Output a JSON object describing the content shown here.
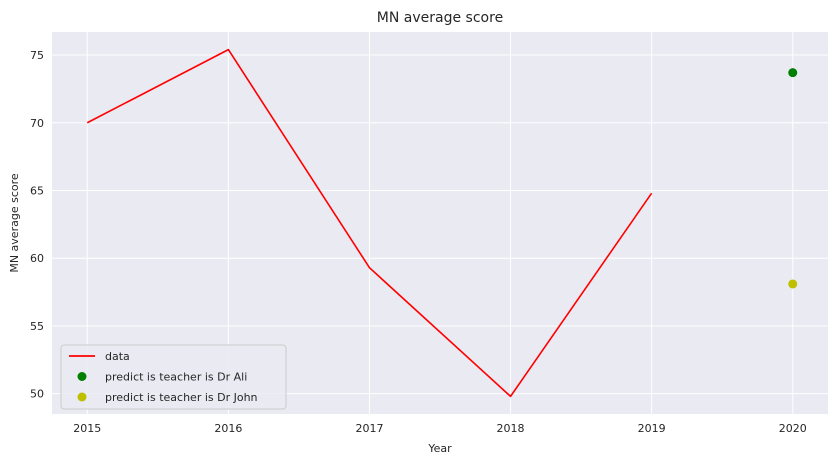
{
  "chart_data": {
    "type": "line",
    "title": "MN average score",
    "xlabel": "Year",
    "ylabel": "MN average score",
    "xlim": [
      2014.75,
      2020.25
    ],
    "ylim": [
      48.5,
      76.7
    ],
    "xticks": [
      2015,
      2016,
      2017,
      2018,
      2019,
      2020
    ],
    "yticks": [
      50,
      55,
      60,
      65,
      70,
      75
    ],
    "grid": true,
    "background": "#eaeaf2",
    "legend_position": "lower-left",
    "series": [
      {
        "name": "data",
        "kind": "line",
        "color": "#ff0000",
        "x": [
          2015,
          2016,
          2017,
          2018,
          2019
        ],
        "y": [
          70.0,
          75.4,
          59.3,
          49.8,
          64.8
        ]
      },
      {
        "name": "predict is teacher is Dr Ali",
        "kind": "scatter",
        "color": "#008000",
        "x": [
          2020
        ],
        "y": [
          73.7
        ]
      },
      {
        "name": "predict is teacher is Dr John",
        "kind": "scatter",
        "color": "#bfbf00",
        "x": [
          2020
        ],
        "y": [
          58.1
        ]
      }
    ]
  }
}
